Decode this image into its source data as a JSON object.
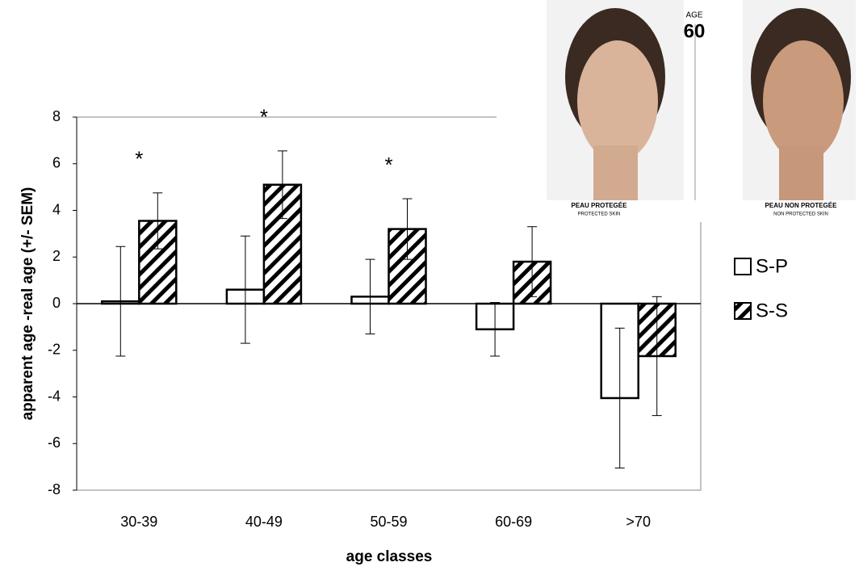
{
  "chart_data": {
    "type": "bar",
    "y_label": "apparent age -real age (+/- SEM)",
    "x_label": "age classes",
    "categories": [
      "30-39",
      "40-49",
      "50-59",
      "60-69",
      ">70"
    ],
    "series": [
      {
        "name": "S-P",
        "color": "#ffffff",
        "hatch": false,
        "values": [
          0.1,
          0.6,
          0.3,
          -1.1,
          -4.05
        ],
        "errors": [
          2.35,
          2.3,
          1.6,
          1.15,
          3.0
        ]
      },
      {
        "name": "S-S",
        "color": "#000000",
        "hatch": true,
        "values": [
          3.55,
          5.1,
          3.2,
          1.8,
          -2.25
        ],
        "errors": [
          1.2,
          1.45,
          1.3,
          1.5,
          2.55
        ]
      }
    ],
    "significance": [
      "*",
      "*",
      "*",
      null,
      null
    ],
    "ylim": [
      -8,
      8
    ],
    "yticks": [
      -8,
      -6,
      -4,
      -2,
      0,
      2,
      4,
      6,
      8
    ]
  },
  "inset": {
    "age_caption": "AGE",
    "age": "60",
    "left_title": "PEAU PROTEGÉE",
    "left_subtitle": "PROTECTED SKIN",
    "right_title": "PEAU NON PROTEGÉE",
    "right_subtitle": "NON PROTECTED SKIN"
  }
}
